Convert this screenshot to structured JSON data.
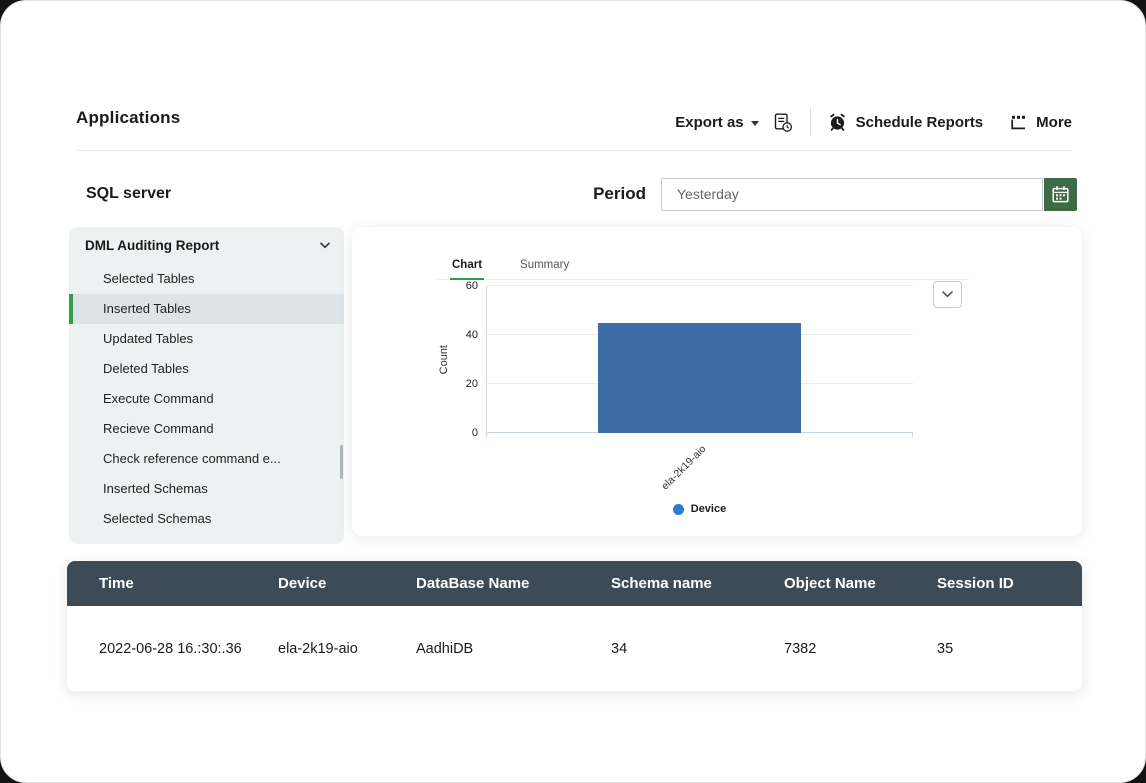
{
  "header": {
    "title": "Applications",
    "export_label": "Export as",
    "schedule_label": "Schedule Reports",
    "more_label": "More"
  },
  "subheader": {
    "title": "SQL server",
    "period_label": "Period",
    "period_value": "Yesterday"
  },
  "sidebar": {
    "group_label": "DML Auditing Report",
    "items": [
      {
        "label": "Selected Tables",
        "selected": false
      },
      {
        "label": "Inserted Tables",
        "selected": true
      },
      {
        "label": "Updated Tables",
        "selected": false
      },
      {
        "label": "Deleted Tables",
        "selected": false
      },
      {
        "label": "Execute Command",
        "selected": false
      },
      {
        "label": "Recieve Command",
        "selected": false
      },
      {
        "label": "Check reference command e...",
        "selected": false
      },
      {
        "label": "Inserted Schemas",
        "selected": false
      },
      {
        "label": "Selected Schemas",
        "selected": false
      }
    ]
  },
  "chart_panel": {
    "tabs": [
      {
        "label": "Chart",
        "active": true
      },
      {
        "label": "Summary",
        "active": false
      }
    ]
  },
  "chart_data": {
    "type": "bar",
    "categories": [
      "ela-2k19-aio"
    ],
    "values": [
      45
    ],
    "title": "",
    "xlabel": "",
    "ylabel": "Count",
    "ylim": [
      0,
      60
    ],
    "yticks": [
      0,
      20,
      40,
      60
    ],
    "grid": true,
    "bar_color": "#3d6ca6",
    "legend_position": "bottom-center",
    "legend": [
      {
        "label": "Device",
        "color": "#2e7bd4"
      }
    ]
  },
  "table": {
    "columns": [
      "Time",
      "Device",
      "DataBase Name",
      "Schema name",
      "Object Name",
      "Session ID"
    ],
    "rows": [
      [
        "2022-06-28 16.:30:.36",
        "ela-2k19-aio",
        "AadhiDB",
        "34",
        "7382",
        "35"
      ]
    ]
  },
  "icons": {
    "export_caret": "caret-down",
    "export_history": "document-clock",
    "schedule": "alarm-clock",
    "more": "more-grid",
    "calendar": "calendar",
    "sidebar_group": "chevron-down",
    "chart_options": "chevron-down"
  },
  "colors": {
    "accent_green": "#2f9e44",
    "table_header_bg": "#3c4b55",
    "calendar_button_bg": "#3e6b46",
    "sidebar_bg": "#edf1f2",
    "bar_blue": "#3d6ca6",
    "legend_blue": "#2e7bd4"
  }
}
